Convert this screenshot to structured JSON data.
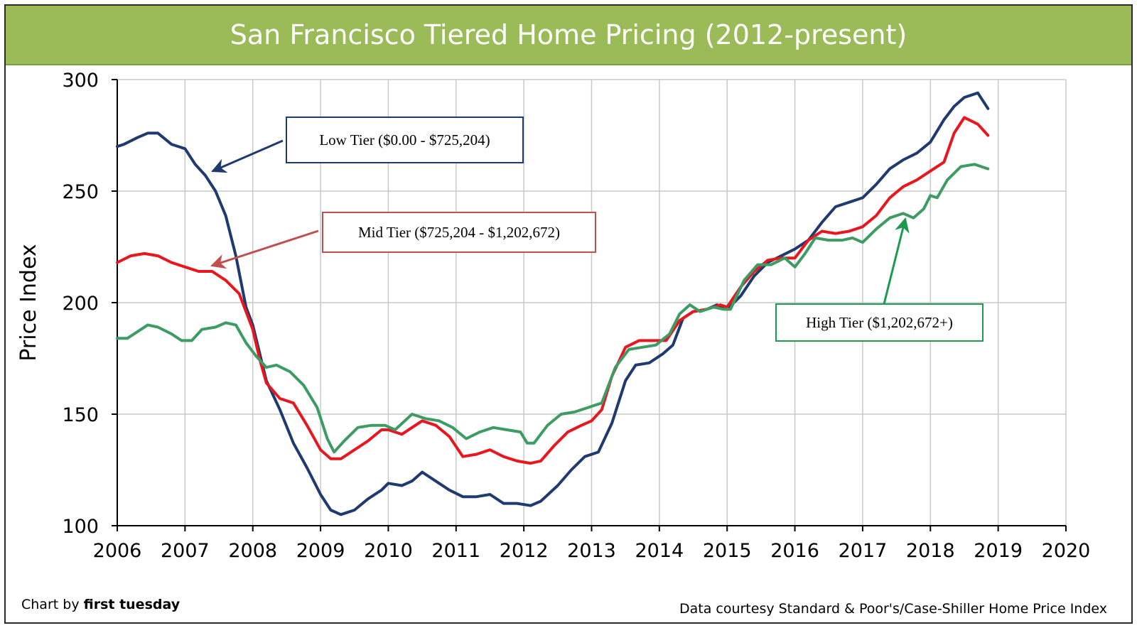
{
  "chart_data": {
    "type": "line",
    "title": "San Francisco Tiered Home Pricing (2012-present)",
    "xlabel": "",
    "ylabel": "Price Index",
    "xlim": [
      2006,
      2020
    ],
    "ylim": [
      100,
      300
    ],
    "x_ticks": [
      "2006",
      "2007",
      "2008",
      "2009",
      "2010",
      "2011",
      "2012",
      "2013",
      "2014",
      "2015",
      "2016",
      "2017",
      "2018",
      "2019",
      "2020"
    ],
    "y_ticks": [
      "100",
      "150",
      "200",
      "250",
      "300"
    ],
    "grid": true,
    "series": [
      {
        "name": "Low Tier ($0.00 - $725,204)",
        "color": "#1f3a6e",
        "points": [
          [
            2006.0,
            270
          ],
          [
            2006.1,
            271
          ],
          [
            2006.3,
            274
          ],
          [
            2006.45,
            276
          ],
          [
            2006.6,
            276
          ],
          [
            2006.8,
            271
          ],
          [
            2007.0,
            269
          ],
          [
            2007.15,
            262
          ],
          [
            2007.3,
            257
          ],
          [
            2007.45,
            250
          ],
          [
            2007.6,
            239
          ],
          [
            2007.75,
            221
          ],
          [
            2007.9,
            198
          ],
          [
            2008.0,
            190
          ],
          [
            2008.2,
            165
          ],
          [
            2008.4,
            152
          ],
          [
            2008.6,
            137
          ],
          [
            2008.8,
            126
          ],
          [
            2009.0,
            114
          ],
          [
            2009.15,
            107
          ],
          [
            2009.3,
            105
          ],
          [
            2009.5,
            107
          ],
          [
            2009.7,
            112
          ],
          [
            2009.9,
            116
          ],
          [
            2010.0,
            119
          ],
          [
            2010.2,
            118
          ],
          [
            2010.35,
            120
          ],
          [
            2010.5,
            124
          ],
          [
            2010.7,
            120
          ],
          [
            2010.9,
            116
          ],
          [
            2011.1,
            113
          ],
          [
            2011.3,
            113
          ],
          [
            2011.5,
            114
          ],
          [
            2011.7,
            110
          ],
          [
            2011.9,
            110
          ],
          [
            2012.1,
            109
          ],
          [
            2012.25,
            111
          ],
          [
            2012.5,
            118
          ],
          [
            2012.7,
            125
          ],
          [
            2012.9,
            131
          ],
          [
            2013.1,
            133
          ],
          [
            2013.3,
            146
          ],
          [
            2013.5,
            165
          ],
          [
            2013.65,
            172
          ],
          [
            2013.85,
            173
          ],
          [
            2014.05,
            177
          ],
          [
            2014.2,
            181
          ],
          [
            2014.35,
            193
          ],
          [
            2014.5,
            196
          ],
          [
            2014.7,
            197
          ],
          [
            2014.85,
            199
          ],
          [
            2015.0,
            197
          ],
          [
            2015.2,
            203
          ],
          [
            2015.4,
            212
          ],
          [
            2015.6,
            218
          ],
          [
            2015.8,
            221
          ],
          [
            2016.0,
            224
          ],
          [
            2016.2,
            228
          ],
          [
            2016.4,
            236
          ],
          [
            2016.6,
            243
          ],
          [
            2016.8,
            245
          ],
          [
            2017.0,
            247
          ],
          [
            2017.2,
            253
          ],
          [
            2017.4,
            260
          ],
          [
            2017.6,
            264
          ],
          [
            2017.8,
            267
          ],
          [
            2018.0,
            272
          ],
          [
            2018.2,
            282
          ],
          [
            2018.35,
            288
          ],
          [
            2018.5,
            292
          ],
          [
            2018.7,
            294
          ],
          [
            2018.85,
            287
          ]
        ]
      },
      {
        "name": "Mid Tier ($725,204 - $1,202,672)",
        "color": "#e8171f",
        "points": [
          [
            2006.0,
            218
          ],
          [
            2006.2,
            221
          ],
          [
            2006.4,
            222
          ],
          [
            2006.6,
            221
          ],
          [
            2006.8,
            218
          ],
          [
            2007.0,
            216
          ],
          [
            2007.2,
            214
          ],
          [
            2007.4,
            214
          ],
          [
            2007.6,
            210
          ],
          [
            2007.8,
            204
          ],
          [
            2008.0,
            188
          ],
          [
            2008.1,
            175
          ],
          [
            2008.2,
            164
          ],
          [
            2008.4,
            157
          ],
          [
            2008.6,
            155
          ],
          [
            2008.8,
            145
          ],
          [
            2009.0,
            134
          ],
          [
            2009.15,
            130
          ],
          [
            2009.3,
            130
          ],
          [
            2009.5,
            134
          ],
          [
            2009.7,
            138
          ],
          [
            2009.9,
            143
          ],
          [
            2010.0,
            143
          ],
          [
            2010.2,
            141
          ],
          [
            2010.35,
            144
          ],
          [
            2010.5,
            147
          ],
          [
            2010.7,
            145
          ],
          [
            2010.9,
            140
          ],
          [
            2011.1,
            131
          ],
          [
            2011.3,
            132
          ],
          [
            2011.5,
            134
          ],
          [
            2011.7,
            131
          ],
          [
            2011.9,
            129
          ],
          [
            2012.1,
            128
          ],
          [
            2012.25,
            129
          ],
          [
            2012.45,
            136
          ],
          [
            2012.65,
            142
          ],
          [
            2012.85,
            145
          ],
          [
            2013.0,
            147
          ],
          [
            2013.15,
            152
          ],
          [
            2013.3,
            167
          ],
          [
            2013.5,
            180
          ],
          [
            2013.7,
            183
          ],
          [
            2013.9,
            183
          ],
          [
            2014.1,
            183
          ],
          [
            2014.3,
            192
          ],
          [
            2014.5,
            196
          ],
          [
            2014.7,
            197
          ],
          [
            2014.9,
            199
          ],
          [
            2015.0,
            198
          ],
          [
            2015.2,
            207
          ],
          [
            2015.4,
            214
          ],
          [
            2015.6,
            219
          ],
          [
            2015.8,
            220
          ],
          [
            2016.0,
            220
          ],
          [
            2016.2,
            228
          ],
          [
            2016.4,
            232
          ],
          [
            2016.6,
            231
          ],
          [
            2016.8,
            232
          ],
          [
            2017.0,
            234
          ],
          [
            2017.2,
            239
          ],
          [
            2017.4,
            247
          ],
          [
            2017.6,
            252
          ],
          [
            2017.8,
            255
          ],
          [
            2018.0,
            259
          ],
          [
            2018.2,
            263
          ],
          [
            2018.35,
            276
          ],
          [
            2018.5,
            283
          ],
          [
            2018.7,
            280
          ],
          [
            2018.85,
            275
          ]
        ]
      },
      {
        "name": "High Tier ($1,202,672+)",
        "color": "#3d9b63",
        "points": [
          [
            2006.0,
            184
          ],
          [
            2006.15,
            184
          ],
          [
            2006.3,
            187
          ],
          [
            2006.45,
            190
          ],
          [
            2006.6,
            189
          ],
          [
            2006.8,
            186
          ],
          [
            2006.95,
            183
          ],
          [
            2007.1,
            183
          ],
          [
            2007.25,
            188
          ],
          [
            2007.45,
            189
          ],
          [
            2007.6,
            191
          ],
          [
            2007.75,
            190
          ],
          [
            2007.9,
            182
          ],
          [
            2008.05,
            176
          ],
          [
            2008.2,
            171
          ],
          [
            2008.35,
            172
          ],
          [
            2008.55,
            169
          ],
          [
            2008.75,
            163
          ],
          [
            2008.95,
            153
          ],
          [
            2009.1,
            139
          ],
          [
            2009.2,
            133
          ],
          [
            2009.35,
            138
          ],
          [
            2009.55,
            144
          ],
          [
            2009.75,
            145
          ],
          [
            2009.95,
            145
          ],
          [
            2010.1,
            143
          ],
          [
            2010.35,
            150
          ],
          [
            2010.55,
            148
          ],
          [
            2010.75,
            147
          ],
          [
            2010.95,
            144
          ],
          [
            2011.15,
            139
          ],
          [
            2011.35,
            142
          ],
          [
            2011.55,
            144
          ],
          [
            2011.75,
            143
          ],
          [
            2011.95,
            142
          ],
          [
            2012.05,
            137
          ],
          [
            2012.15,
            137
          ],
          [
            2012.35,
            145
          ],
          [
            2012.55,
            150
          ],
          [
            2012.75,
            151
          ],
          [
            2012.95,
            153
          ],
          [
            2013.05,
            154
          ],
          [
            2013.15,
            155
          ],
          [
            2013.35,
            171
          ],
          [
            2013.55,
            179
          ],
          [
            2013.75,
            180
          ],
          [
            2013.95,
            181
          ],
          [
            2014.15,
            186
          ],
          [
            2014.3,
            195
          ],
          [
            2014.45,
            199
          ],
          [
            2014.6,
            196
          ],
          [
            2014.8,
            198
          ],
          [
            2014.95,
            197
          ],
          [
            2015.05,
            197
          ],
          [
            2015.25,
            210
          ],
          [
            2015.45,
            217
          ],
          [
            2015.65,
            217
          ],
          [
            2015.85,
            220
          ],
          [
            2016.0,
            216
          ],
          [
            2016.15,
            222
          ],
          [
            2016.3,
            229
          ],
          [
            2016.5,
            228
          ],
          [
            2016.7,
            228
          ],
          [
            2016.85,
            229
          ],
          [
            2017.0,
            227
          ],
          [
            2017.2,
            233
          ],
          [
            2017.4,
            238
          ],
          [
            2017.6,
            240
          ],
          [
            2017.75,
            238
          ],
          [
            2017.9,
            242
          ],
          [
            2018.0,
            248
          ],
          [
            2018.1,
            247
          ],
          [
            2018.25,
            255
          ],
          [
            2018.45,
            261
          ],
          [
            2018.65,
            262
          ],
          [
            2018.85,
            260
          ]
        ]
      }
    ],
    "legend": "callouts",
    "callouts": [
      {
        "text": "Low Tier ($0.00 - $725,204)",
        "color": "#1f3a6e"
      },
      {
        "text": "Mid Tier ($725,204 - $1,202,672)",
        "color": "#c0504d"
      },
      {
        "text": "High Tier ($1,202,672+)",
        "color": "#1a9b50"
      }
    ]
  },
  "footer": {
    "credit_prefix": "Chart by ",
    "credit_brand": "first tuesday",
    "source": "Data courtesy Standard & Poor's/Case-Shiller Home Price Index"
  }
}
